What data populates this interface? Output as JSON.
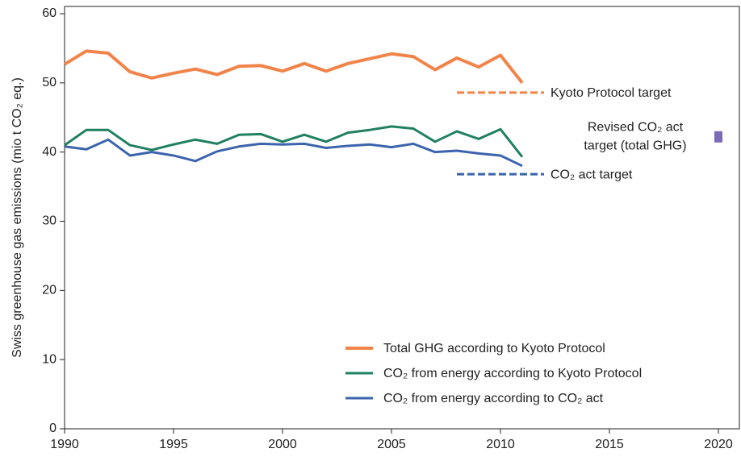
{
  "chart_data": {
    "type": "line",
    "ylabel": "Swiss greenhouse gas emissions (mio t CO₂ eq.)",
    "x": [
      1990,
      1991,
      1992,
      1993,
      1994,
      1995,
      1996,
      1997,
      1998,
      1999,
      2000,
      2001,
      2002,
      2003,
      2004,
      2005,
      2006,
      2007,
      2008,
      2009,
      2010,
      2011
    ],
    "series": [
      {
        "name": "Total GHG according to Kyoto Protocol",
        "color": "#f0844a",
        "values": [
          52.7,
          54.6,
          54.3,
          51.6,
          50.7,
          51.4,
          52.0,
          51.2,
          52.4,
          52.5,
          51.7,
          52.8,
          51.7,
          52.8,
          53.5,
          54.2,
          53.8,
          51.9,
          53.6,
          52.3,
          54.0,
          50.0
        ]
      },
      {
        "name": "CO₂ from energy according to Kyoto Protocol",
        "color": "#1f8060",
        "values": [
          41.0,
          43.2,
          43.2,
          41.0,
          40.3,
          41.1,
          41.8,
          41.2,
          42.5,
          42.6,
          41.5,
          42.5,
          41.5,
          42.8,
          43.2,
          43.7,
          43.4,
          41.5,
          43.0,
          41.9,
          43.3,
          39.3
        ]
      },
      {
        "name": "CO₂ from energy according to CO₂ act",
        "color": "#3b64ad",
        "values": [
          40.8,
          40.4,
          41.8,
          39.5,
          40.0,
          39.5,
          38.7,
          40.1,
          40.8,
          41.2,
          41.1,
          41.2,
          40.6,
          40.9,
          41.1,
          40.7,
          41.2,
          40.0,
          40.2,
          39.8,
          39.5,
          38.0
        ]
      }
    ],
    "targets": [
      {
        "label": [
          "Kyoto Protocol target"
        ],
        "color": "#f0844a",
        "x": [
          2008,
          2012
        ],
        "value": 48.6
      },
      {
        "label": [
          "CO₂ act target"
        ],
        "color": "#3b64ad",
        "x": [
          2008,
          2012
        ],
        "value": 36.8
      },
      {
        "label": [
          "Revised CO₂ act",
          "target (total GHG)"
        ],
        "color": "#7b6ab8",
        "x": [
          2020
        ],
        "value": 42.2
      }
    ],
    "xlim": [
      1990,
      2020
    ],
    "xticks": [
      1990,
      1995,
      2000,
      2005,
      2010,
      2015,
      2020
    ],
    "ylim": [
      0,
      60
    ],
    "yticks": [
      0,
      10,
      20,
      30,
      40,
      50,
      60
    ],
    "legend": "lower right"
  }
}
